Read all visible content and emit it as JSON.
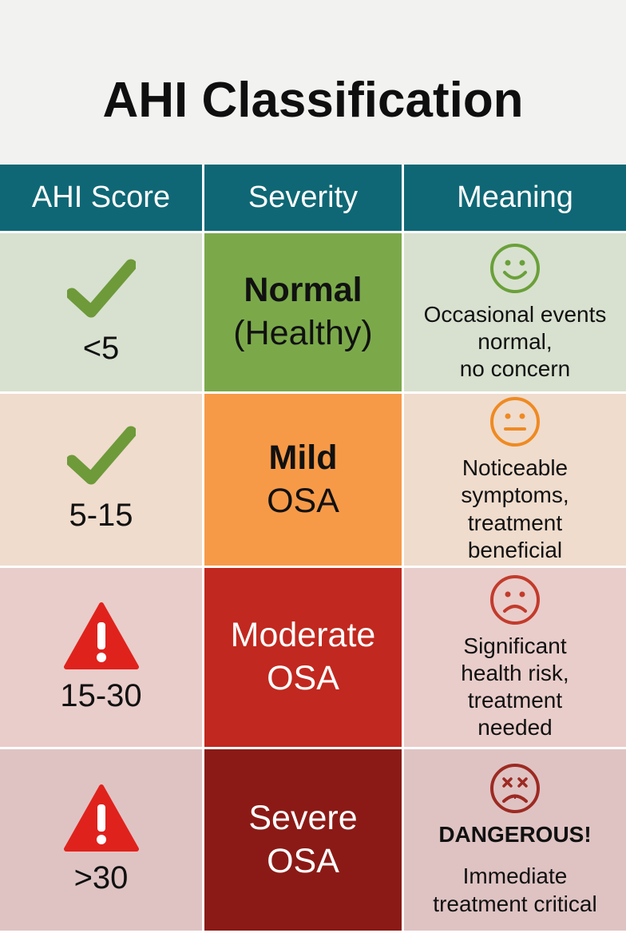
{
  "title": "AHI Classification",
  "headers": [
    "AHI Score",
    "Severity",
    "Meaning"
  ],
  "rows": [
    {
      "score": "<5",
      "score_icon": "check-icon",
      "severity_bold": "Normal",
      "severity_sub": "(Healthy)",
      "face_icon": "smile-face-icon",
      "meaning_title": "",
      "meaning_lines": [
        "Occasional events",
        "normal,",
        "no concern"
      ],
      "row_bg": "#d8e1cf",
      "severity_bg": "#7ba94a",
      "face_color": "#6aa03a",
      "score_icon_color": "#6e9a3a"
    },
    {
      "score": "5-15",
      "score_icon": "check-icon",
      "severity_bold": "Mild",
      "severity_sub": "OSA",
      "face_icon": "neutral-face-icon",
      "meaning_title": "",
      "meaning_lines": [
        "Noticeable",
        "symptoms,",
        "treatment",
        "beneficial"
      ],
      "row_bg": "#efdccd",
      "severity_bg": "#f79a48",
      "face_color": "#ef8a22",
      "score_icon_color": "#6e9a3a"
    },
    {
      "score": "15-30",
      "score_icon": "warning-icon",
      "severity_bold": "Moderate",
      "severity_sub": "OSA",
      "face_icon": "sad-face-icon",
      "meaning_title": "",
      "meaning_lines": [
        "Significant",
        "health risk,",
        "treatment",
        "needed"
      ],
      "row_bg": "#e9cdca",
      "severity_bg": "#c1281f",
      "face_color": "#c23b2c",
      "score_icon_color": "#e0221c"
    },
    {
      "score": ">30",
      "score_icon": "warning-icon",
      "severity_bold": "Severe",
      "severity_sub": "OSA",
      "face_icon": "distressed-face-icon",
      "meaning_title": "DANGEROUS!",
      "meaning_lines": [
        "Immediate",
        "treatment critical"
      ],
      "row_bg": "#dfc3c3",
      "severity_bg": "#8b1a16",
      "face_color": "#9c2a22",
      "score_icon_color": "#e0221c"
    }
  ]
}
